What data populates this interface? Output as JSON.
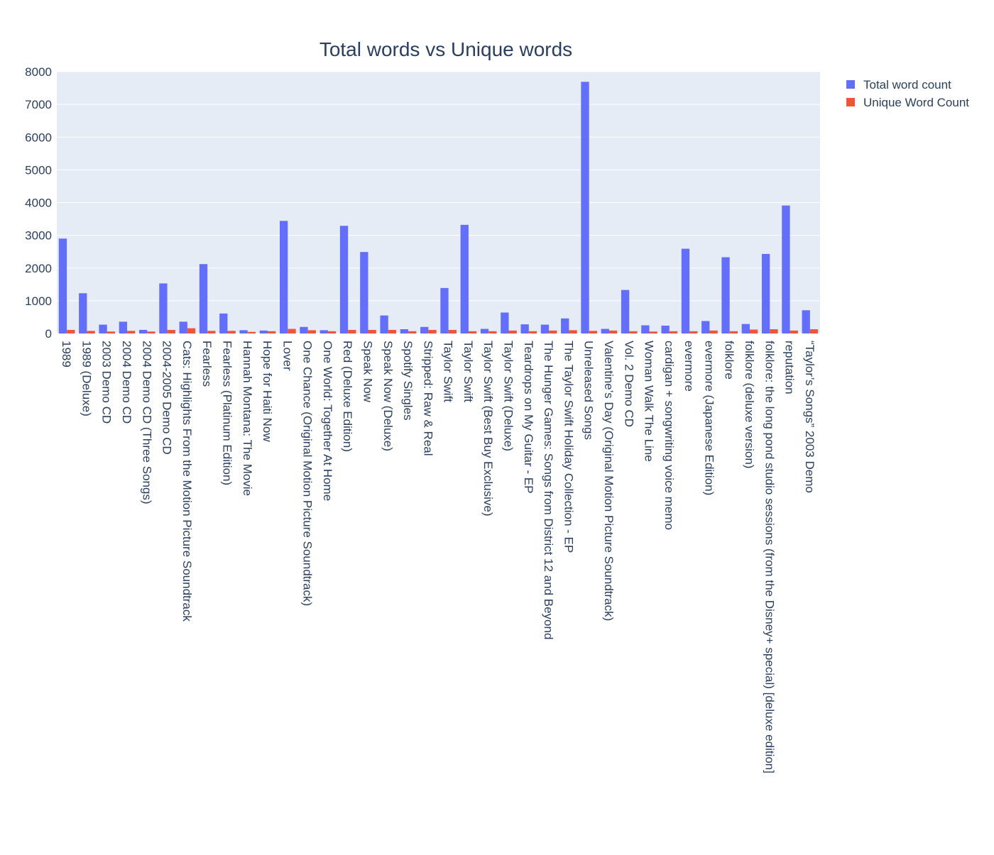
{
  "chart_data": {
    "type": "bar",
    "title": "Total words vs Unique words",
    "xlabel": "",
    "ylabel": "",
    "ylim": [
      0,
      8000
    ],
    "yticks": [
      0,
      1000,
      2000,
      3000,
      4000,
      5000,
      6000,
      7000,
      8000
    ],
    "grid": true,
    "legend_position": "top-right",
    "categories": [
      "1989",
      "1989 (Deluxe)",
      "2003 Demo CD",
      "2004 Demo CD",
      "2004 Demo CD (Three Songs)",
      "2004-2005 Demo CD",
      "Cats: Highlights From the Motion Picture Soundtrack",
      "Fearless",
      "Fearless (Platinum Edition)",
      "Hannah Montana: The Movie",
      "Hope for Haiti Now",
      "Lover",
      "One Chance (Original Motion Picture Soundtrack)",
      "One World: Together At Home",
      "Red (Deluxe Edition)",
      "Speak Now",
      "Speak Now (Deluxe)",
      "Spotify Singles",
      "Stripped: Raw & Real",
      "Taylor Swift",
      "Taylor Swift ",
      "Taylor Swift (Best Buy Exclusive)",
      "Taylor Swift (Deluxe)",
      "Teardrops on My Guitar - EP",
      "The Hunger Games: Songs from District 12 and Beyond",
      "The Taylor Swift Holiday Collection - EP",
      "Unreleased Songs",
      "Valentine’s Day (Original Motion Picture Soundtrack)",
      "Vol. 2 Demo CD",
      "Woman Walk The Line",
      "cardigan + songwriting voice memo",
      "evermore",
      "evermore (Japanese Edition)",
      "folklore",
      "folklore (deluxe version)",
      "folklore: the long pond studio sessions (from the Disney+ special) [deluxe edition]",
      "reputation",
      "“Taylor’s Songs” 2003 Demo"
    ],
    "series": [
      {
        "name": "Total word count",
        "color": "#636efa",
        "values": [
          2900,
          1230,
          270,
          360,
          110,
          1530,
          360,
          2120,
          610,
          100,
          90,
          3440,
          200,
          100,
          3290,
          2490,
          550,
          130,
          200,
          1390,
          3320,
          140,
          640,
          280,
          270,
          460,
          7690,
          140,
          1330,
          250,
          240,
          2590,
          380,
          2330,
          290,
          2430,
          3910,
          710
        ]
      },
      {
        "name": "Unique Word Count",
        "color": "#ef553b",
        "values": [
          110,
          80,
          60,
          80,
          60,
          110,
          160,
          80,
          80,
          50,
          70,
          140,
          100,
          70,
          110,
          110,
          110,
          70,
          110,
          110,
          70,
          70,
          90,
          70,
          90,
          100,
          80,
          90,
          70,
          60,
          70,
          70,
          90,
          70,
          120,
          130,
          90,
          130
        ]
      }
    ]
  }
}
